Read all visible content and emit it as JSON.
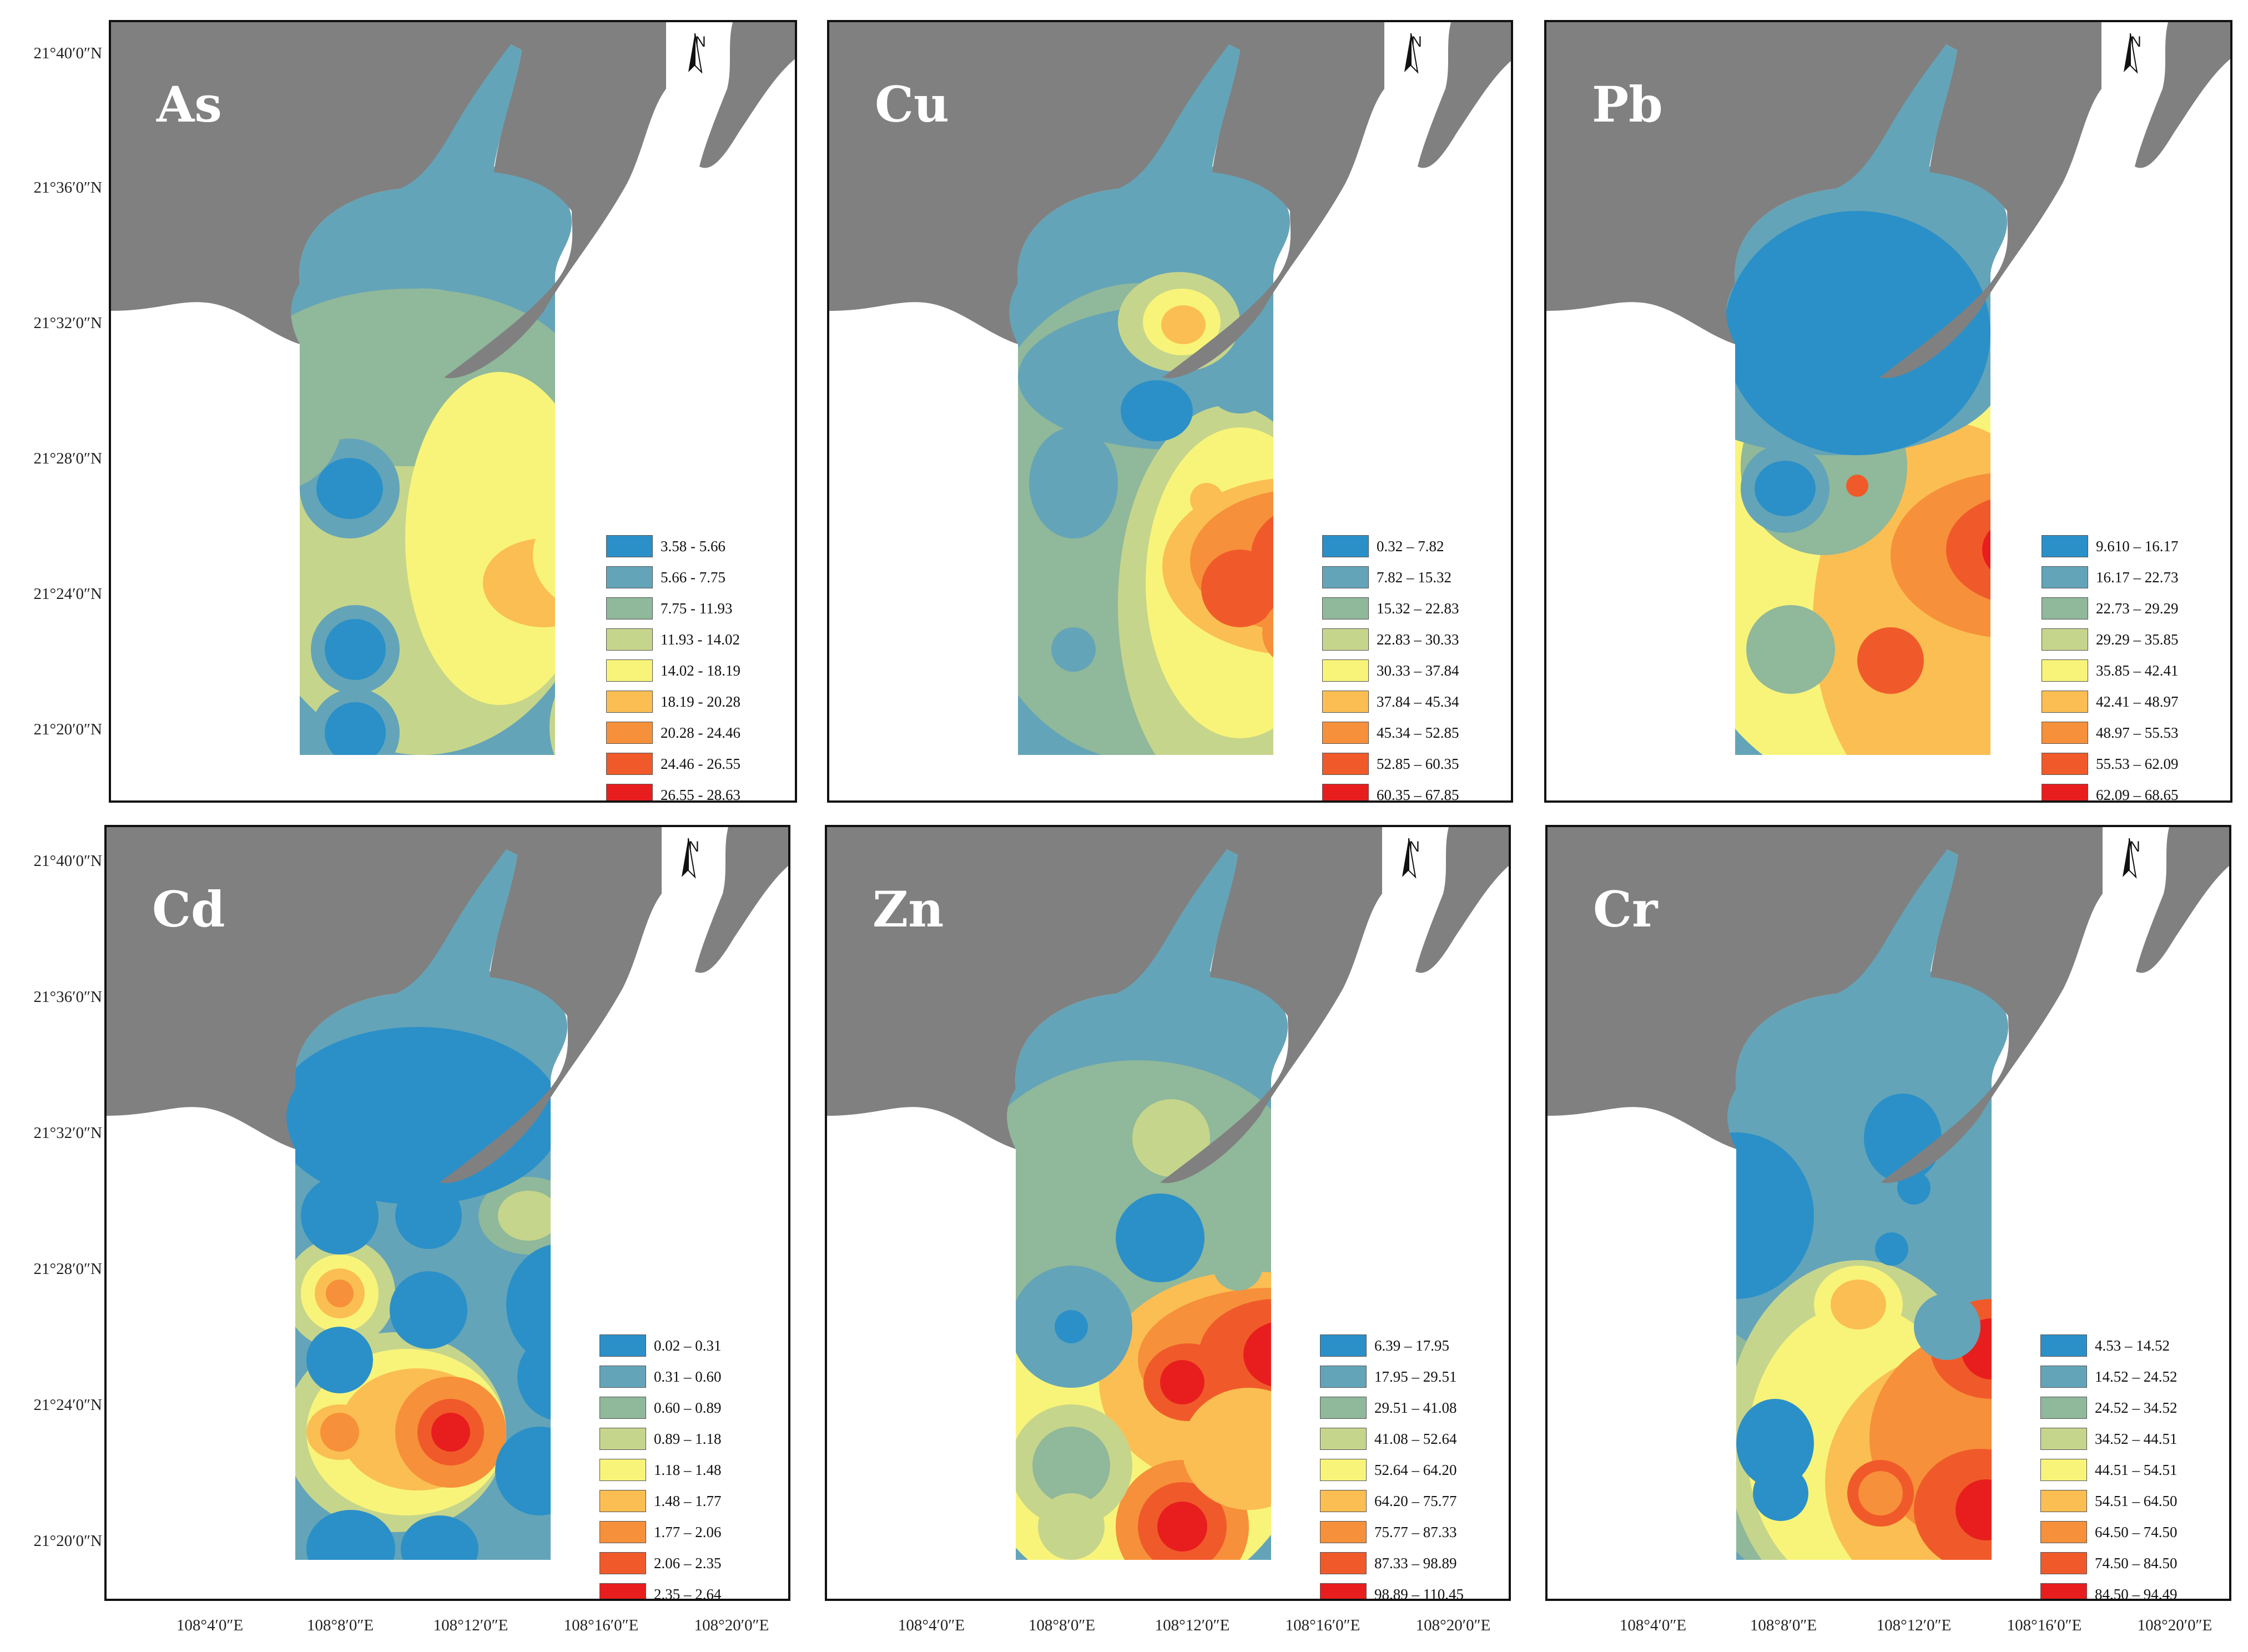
{
  "axes": {
    "lat_ticks": [
      "21°40′0″N",
      "21°36′0″N",
      "21°32′0″N",
      "21°28′0″N",
      "21°24′0″N",
      "21°20′0″N"
    ],
    "lon_ticks": [
      "108°4′0″E",
      "108°8′0″E",
      "108°12′0″E",
      "108°16′0″E",
      "108°20′0″E"
    ]
  },
  "north_label": "N",
  "colors": {
    "land": "#808080",
    "c1": "#2b90c8",
    "c2": "#64a4b8",
    "c3": "#90b89a",
    "c4": "#c6d58c",
    "c5": "#f8f47a",
    "c6": "#fbbe52",
    "c7": "#f7903a",
    "c8": "#f05a2a",
    "c9": "#e81e1e"
  },
  "panels": [
    {
      "title": "As",
      "classes": [
        "3.58 - 5.66",
        "5.66 - 7.75",
        "7.75 - 11.93",
        "11.93 - 14.02",
        "14.02 - 18.19",
        "18.19 - 20.28",
        "20.28 - 24.46",
        "24.46 - 26.55",
        "26.55 - 28.63"
      ]
    },
    {
      "title": "Cu",
      "classes": [
        "0.32 – 7.82",
        "7.82 – 15.32",
        "15.32 – 22.83",
        "22.83 – 30.33",
        "30.33 – 37.84",
        "37.84 – 45.34",
        "45.34 – 52.85",
        "52.85 – 60.35",
        "60.35 – 67.85"
      ]
    },
    {
      "title": "Pb",
      "classes": [
        "9.610 – 16.17",
        "16.17 – 22.73",
        "22.73 – 29.29",
        "29.29 – 35.85",
        "35.85 – 42.41",
        "42.41 – 48.97",
        "48.97 – 55.53",
        "55.53 – 62.09",
        "62.09 – 68.65"
      ]
    },
    {
      "title": "Cd",
      "classes": [
        "0.02 – 0.31",
        "0.31 – 0.60",
        "0.60 – 0.89",
        "0.89 – 1.18",
        "1.18 – 1.48",
        "1.48 – 1.77",
        "1.77 – 2.06",
        "2.06 – 2.35",
        "2.35 – 2.64"
      ]
    },
    {
      "title": "Zn",
      "classes": [
        "6.39 – 17.95",
        "17.95 – 29.51",
        "29.51 – 41.08",
        "41.08 – 52.64",
        "52.64 – 64.20",
        "64.20 – 75.77",
        "75.77 – 87.33",
        "87.33 – 98.89",
        "98.89 – 110.45"
      ]
    },
    {
      "title": "Cr",
      "classes": [
        "4.53 – 14.52",
        "14.52 – 24.52",
        "24.52 – 34.52",
        "34.52 – 44.51",
        "44.51 – 54.51",
        "54.51 – 64.50",
        "64.50 – 74.50",
        "74.50 – 84.50",
        "84.50 – 94.49"
      ]
    }
  ]
}
